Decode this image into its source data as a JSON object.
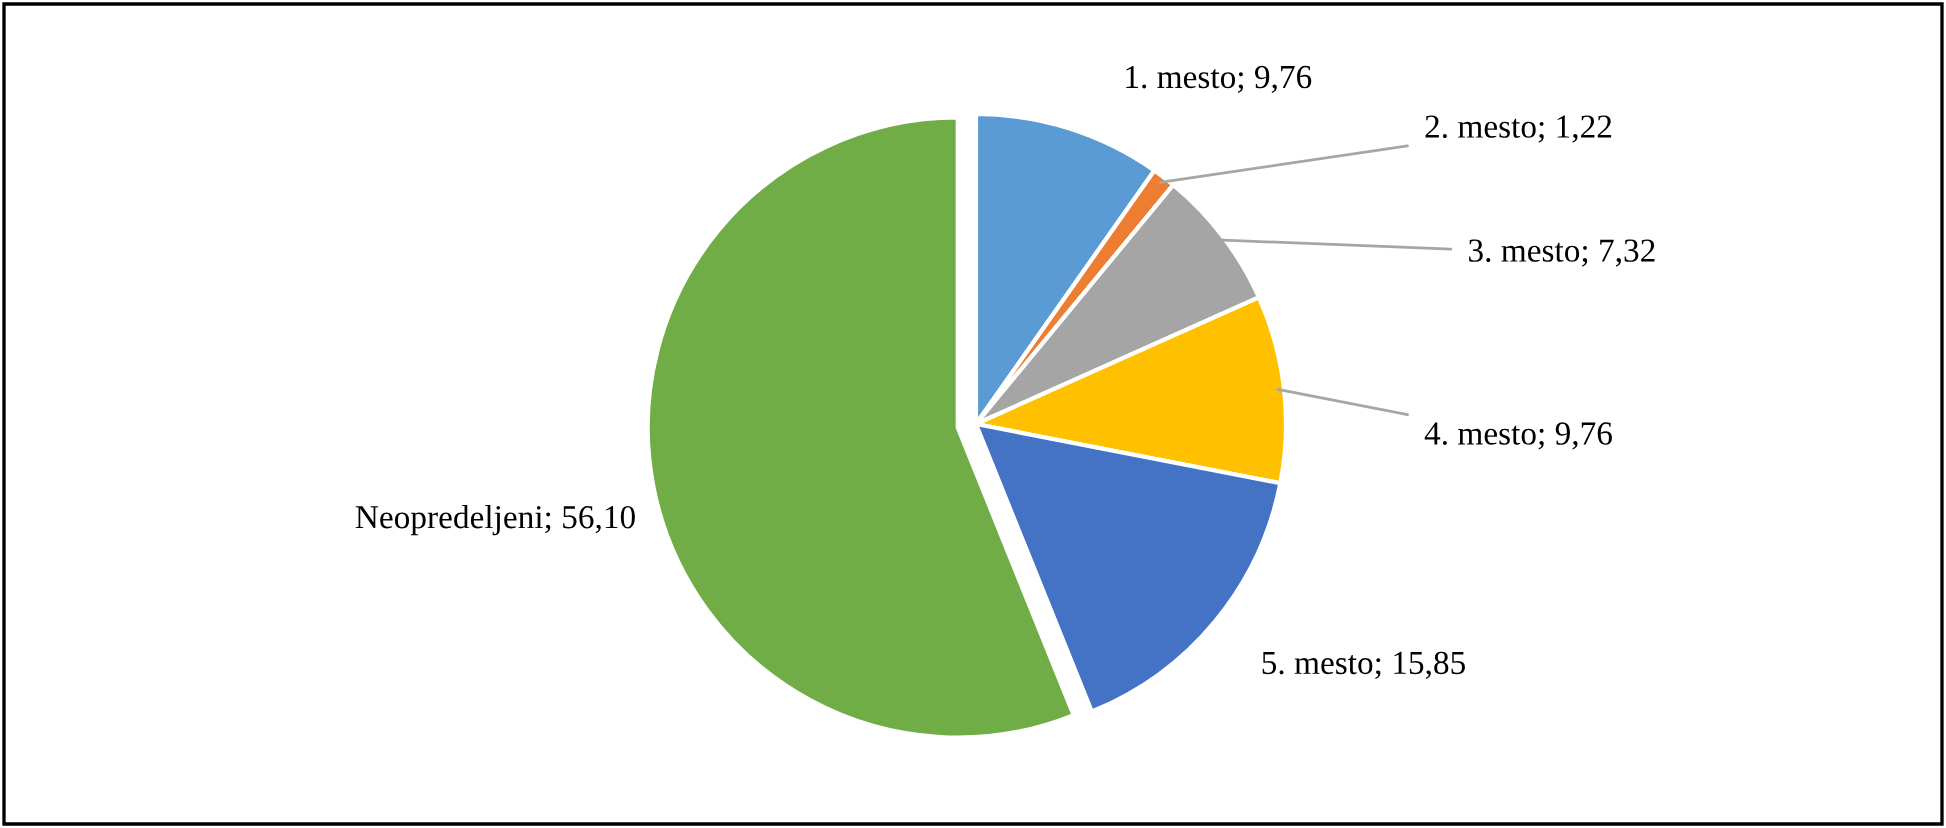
{
  "chart_data": {
    "type": "pie",
    "categories": [
      "1. mesto",
      "2. mesto",
      "3. mesto",
      "4. mesto",
      "5. mesto",
      "Neopredeljeni"
    ],
    "values": [
      9.76,
      1.22,
      7.32,
      9.76,
      15.85,
      56.1
    ],
    "colors": [
      "#5b9bd5",
      "#ed7d31",
      "#a5a5a5",
      "#ffc000",
      "#4472c4",
      "#70ad47"
    ],
    "value_labels": [
      "9,76",
      "1,22",
      "7,32",
      "9,76",
      "15,85",
      "56,10"
    ],
    "legend": false
  }
}
